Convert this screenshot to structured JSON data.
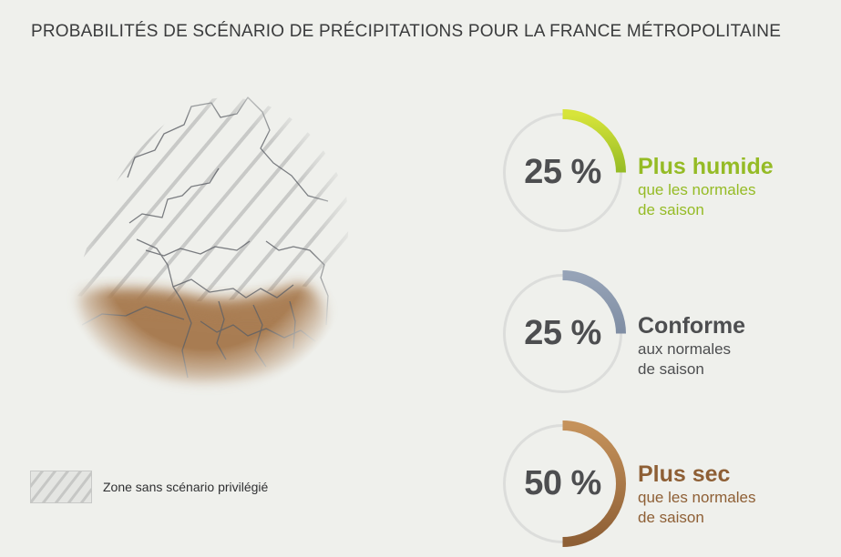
{
  "title": "PROBABILITÉS DE SCÉNARIO DE PRÉCIPITATIONS POUR LA FRANCE MÉTROPOLITAINE",
  "legend": {
    "label": "Zone sans scénario privilégié"
  },
  "map": {
    "south_region_color": "#a77a4f",
    "hatch_color": "#c8c9c7",
    "border_color": "#5d6066"
  },
  "chart_data": {
    "type": "gauge",
    "title": "PROBABILITÉS DE SCÉNARIO DE PRÉCIPITATIONS POUR LA FRANCE MÉTROPOLITAINE",
    "unit": "%",
    "track_color": "#dcdddb",
    "scenarios": [
      {
        "name": "wetter",
        "value": 25,
        "value_label": "25 %",
        "heading": "Plus humide",
        "line1": "que les normales",
        "line2": "de saison",
        "color": "#95bb25",
        "color_light": "#d7e43a"
      },
      {
        "name": "normal",
        "value": 25,
        "value_label": "25 %",
        "heading": "Conforme",
        "line1": "aux normales",
        "line2": "de saison",
        "color": "#7f8da3",
        "color_light": "#96a3b7"
      },
      {
        "name": "drier",
        "value": 50,
        "value_label": "50 %",
        "heading": "Plus sec",
        "line1": "que les normales",
        "line2": "de saison",
        "color": "#8e5f35",
        "color_light": "#c5925b"
      }
    ]
  }
}
